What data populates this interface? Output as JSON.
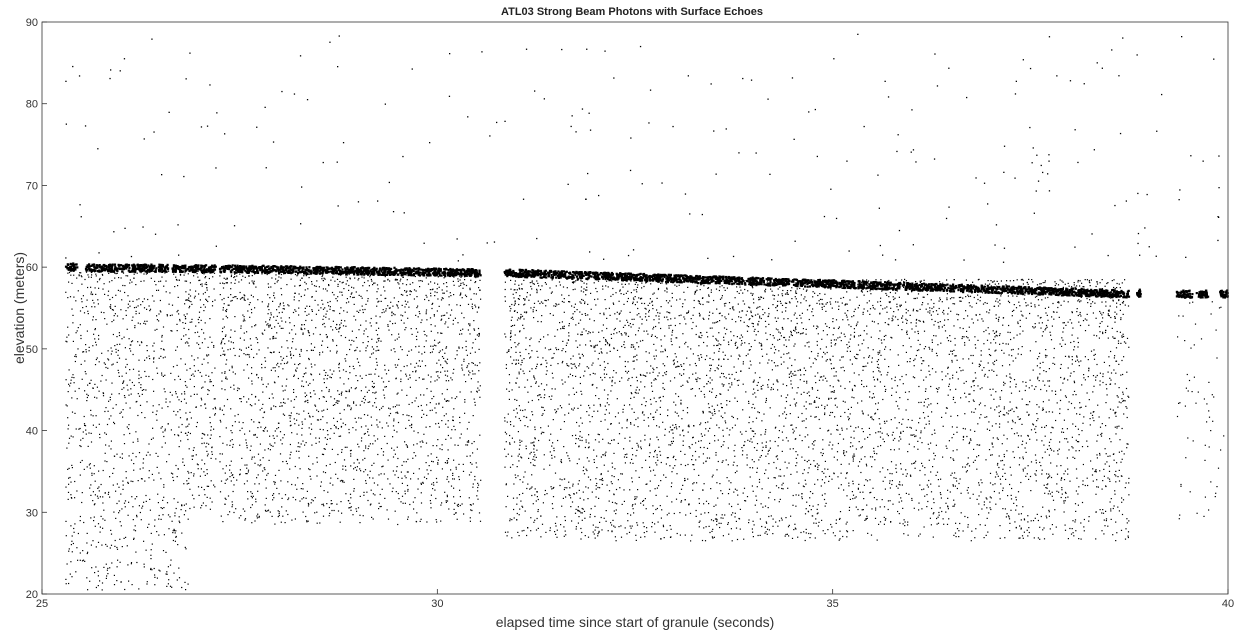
{
  "chart_data": {
    "type": "scatter",
    "title": "ATL03 Strong Beam Photons with Surface Echoes",
    "xlabel": "elapsed time since start of granule (seconds)",
    "ylabel": "elevation (meters)",
    "xlim": [
      25,
      40
    ],
    "ylim": [
      20,
      90
    ],
    "xticks": [
      25,
      30,
      35,
      40
    ],
    "yticks": [
      20,
      30,
      40,
      50,
      60,
      70,
      80,
      90
    ],
    "grid": false,
    "marker_color": "#000000",
    "surface_segments": [
      {
        "x0": 25.3,
        "x1": 25.45,
        "y0": 60.0,
        "y1": 60.0
      },
      {
        "x0": 25.55,
        "x1": 26.6,
        "y0": 59.9,
        "y1": 59.85
      },
      {
        "x0": 26.65,
        "x1": 27.2,
        "y0": 59.85,
        "y1": 59.8
      },
      {
        "x0": 27.25,
        "x1": 30.55,
        "y0": 59.8,
        "y1": 59.3
      },
      {
        "x0": 30.85,
        "x1": 38.75,
        "y0": 59.3,
        "y1": 56.7
      },
      {
        "x0": 38.85,
        "x1": 38.9,
        "y0": 56.8,
        "y1": 56.8
      },
      {
        "x0": 39.35,
        "x1": 39.55,
        "y0": 56.7,
        "y1": 56.7
      },
      {
        "x0": 39.6,
        "x1": 39.75,
        "y0": 56.7,
        "y1": 56.7
      },
      {
        "x0": 39.9,
        "x1": 40.0,
        "y0": 56.7,
        "y1": 56.7
      }
    ],
    "subsurface_regions": [
      {
        "x0": 25.3,
        "x1": 26.85,
        "ymin": 20.5,
        "ymax": 59.5
      },
      {
        "x0": 26.85,
        "x1": 27.2,
        "ymin": 30.0,
        "ymax": 59.5
      },
      {
        "x0": 27.25,
        "x1": 30.55,
        "ymin": 28.5,
        "ymax": 59.2
      },
      {
        "x0": 30.85,
        "x1": 38.75,
        "ymin": 26.5,
        "ymax": 58.5
      }
    ],
    "background_noise_range": {
      "ymin": 60.5,
      "ymax": 88.5
    }
  }
}
